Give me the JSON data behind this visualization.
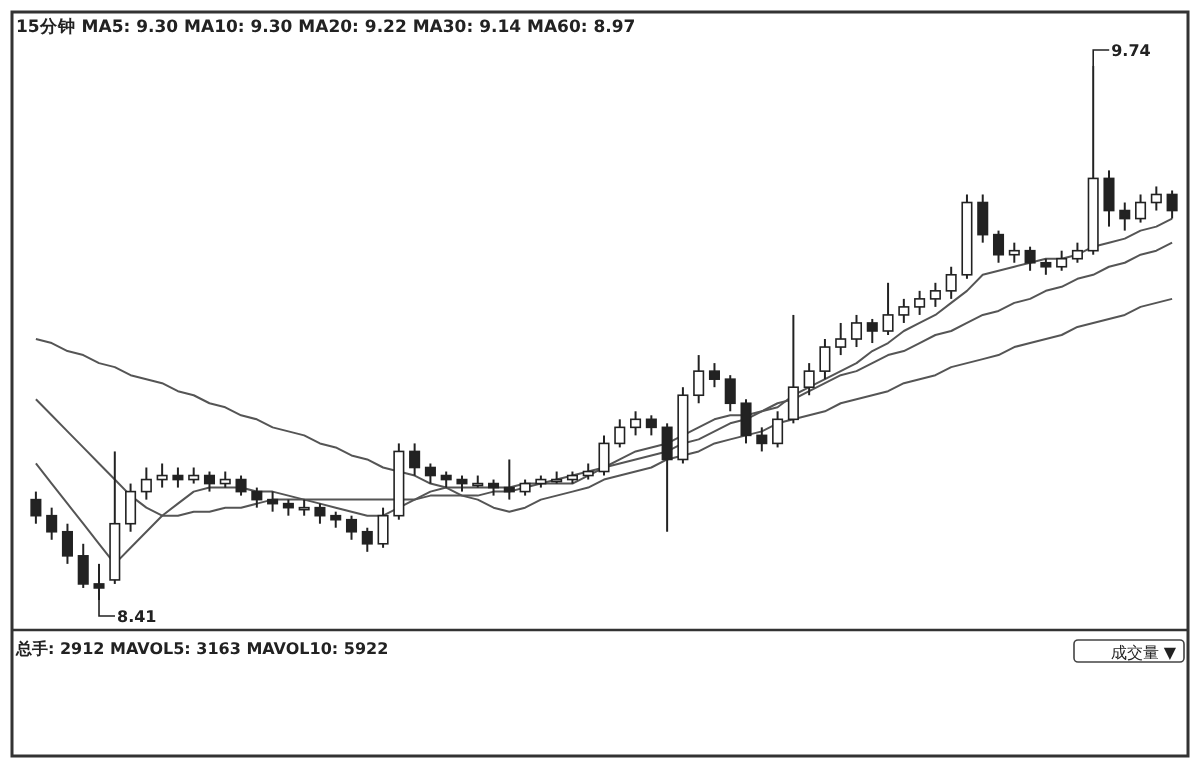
{
  "chart_data": {
    "type": "candlestick",
    "title": "15分钟 MA5: 9.30 MA10: 9.30 MA20: 9.22 MA30: 9.14 MA60: 8.97",
    "categories": [
      null,
      null,
      null,
      null,
      null,
      null,
      null,
      null,
      null,
      null,
      null,
      null,
      null,
      null,
      null,
      null,
      null,
      null,
      null,
      null,
      null,
      null,
      null,
      null,
      null,
      null,
      null,
      null,
      null,
      null,
      null,
      null,
      null,
      null,
      null,
      null,
      null,
      null,
      null,
      null,
      null,
      null,
      null,
      null,
      null,
      null,
      null,
      null,
      null,
      null,
      null,
      null,
      null,
      null,
      null,
      null,
      null,
      null,
      null,
      null,
      null,
      null,
      null,
      null,
      null,
      null,
      null,
      null,
      null,
      null,
      null,
      null,
      null
    ],
    "ohlc": [
      [
        8.66,
        8.68,
        8.6,
        8.62
      ],
      [
        8.62,
        8.64,
        8.56,
        8.58
      ],
      [
        8.58,
        8.6,
        8.5,
        8.52
      ],
      [
        8.52,
        8.55,
        8.44,
        8.45
      ],
      [
        8.45,
        8.5,
        8.41,
        8.44
      ],
      [
        8.46,
        8.78,
        8.45,
        8.6
      ],
      [
        8.6,
        8.7,
        8.58,
        8.68
      ],
      [
        8.68,
        8.74,
        8.66,
        8.71
      ],
      [
        8.71,
        8.75,
        8.69,
        8.72
      ],
      [
        8.72,
        8.74,
        8.69,
        8.71
      ],
      [
        8.71,
        8.74,
        8.7,
        8.72
      ],
      [
        8.72,
        8.73,
        8.68,
        8.7
      ],
      [
        8.7,
        8.73,
        8.69,
        8.71
      ],
      [
        8.71,
        8.72,
        8.67,
        8.68
      ],
      [
        8.68,
        8.69,
        8.64,
        8.66
      ],
      [
        8.66,
        8.68,
        8.63,
        8.65
      ],
      [
        8.65,
        8.66,
        8.62,
        8.64
      ],
      [
        8.64,
        8.66,
        8.62,
        8.64
      ],
      [
        8.64,
        8.65,
        8.6,
        8.62
      ],
      [
        8.62,
        8.63,
        8.59,
        8.61
      ],
      [
        8.61,
        8.62,
        8.56,
        8.58
      ],
      [
        8.58,
        8.59,
        8.53,
        8.55
      ],
      [
        8.55,
        8.64,
        8.54,
        8.62
      ],
      [
        8.62,
        8.8,
        8.61,
        8.78
      ],
      [
        8.78,
        8.8,
        8.72,
        8.74
      ],
      [
        8.74,
        8.75,
        8.7,
        8.72
      ],
      [
        8.72,
        8.73,
        8.69,
        8.71
      ],
      [
        8.71,
        8.72,
        8.68,
        8.7
      ],
      [
        8.7,
        8.72,
        8.69,
        8.7
      ],
      [
        8.7,
        8.71,
        8.67,
        8.69
      ],
      [
        8.69,
        8.76,
        8.66,
        8.68
      ],
      [
        8.68,
        8.71,
        8.67,
        8.7
      ],
      [
        8.7,
        8.72,
        8.69,
        8.71
      ],
      [
        8.71,
        8.73,
        8.7,
        8.71
      ],
      [
        8.71,
        8.73,
        8.7,
        8.72
      ],
      [
        8.72,
        8.75,
        8.71,
        8.73
      ],
      [
        8.73,
        8.82,
        8.72,
        8.8
      ],
      [
        8.8,
        8.86,
        8.79,
        8.84
      ],
      [
        8.84,
        8.88,
        8.82,
        8.86
      ],
      [
        8.86,
        8.87,
        8.82,
        8.84
      ],
      [
        8.84,
        8.85,
        8.58,
        8.76
      ],
      [
        8.76,
        8.94,
        8.75,
        8.92
      ],
      [
        8.92,
        9.02,
        8.9,
        8.98
      ],
      [
        8.98,
        9.0,
        8.94,
        8.96
      ],
      [
        8.96,
        8.97,
        8.88,
        8.9
      ],
      [
        8.9,
        8.91,
        8.8,
        8.82
      ],
      [
        8.82,
        8.84,
        8.78,
        8.8
      ],
      [
        8.8,
        8.88,
        8.79,
        8.86
      ],
      [
        8.86,
        9.12,
        8.85,
        8.94
      ],
      [
        8.94,
        9.0,
        8.92,
        8.98
      ],
      [
        8.98,
        9.06,
        8.96,
        9.04
      ],
      [
        9.04,
        9.1,
        9.02,
        9.06
      ],
      [
        9.06,
        9.12,
        9.04,
        9.1
      ],
      [
        9.1,
        9.11,
        9.05,
        9.08
      ],
      [
        9.08,
        9.2,
        9.07,
        9.12
      ],
      [
        9.12,
        9.16,
        9.1,
        9.14
      ],
      [
        9.14,
        9.18,
        9.12,
        9.16
      ],
      [
        9.16,
        9.2,
        9.14,
        9.18
      ],
      [
        9.18,
        9.24,
        9.16,
        9.22
      ],
      [
        9.22,
        9.42,
        9.21,
        9.4
      ],
      [
        9.4,
        9.42,
        9.3,
        9.32
      ],
      [
        9.32,
        9.33,
        9.25,
        9.27
      ],
      [
        9.27,
        9.3,
        9.25,
        9.28
      ],
      [
        9.28,
        9.29,
        9.23,
        9.25
      ],
      [
        9.25,
        9.26,
        9.22,
        9.24
      ],
      [
        9.24,
        9.28,
        9.23,
        9.26
      ],
      [
        9.26,
        9.3,
        9.25,
        9.28
      ],
      [
        9.28,
        9.74,
        9.27,
        9.46
      ],
      [
        9.46,
        9.48,
        9.34,
        9.38
      ],
      [
        9.38,
        9.4,
        9.33,
        9.36
      ],
      [
        9.36,
        9.42,
        9.35,
        9.4
      ],
      [
        9.4,
        9.44,
        9.38,
        9.42
      ],
      [
        9.42,
        9.43,
        9.36,
        9.38
      ]
    ],
    "series": [
      {
        "type": "line",
        "color": "#555555",
        "values": [
          9.06,
          9.05,
          9.03,
          9.02,
          9.0,
          8.99,
          8.97,
          8.96,
          8.95,
          8.93,
          8.92,
          8.9,
          8.89,
          8.87,
          8.86,
          8.84,
          8.83,
          8.82,
          8.8,
          8.79,
          8.77,
          8.76,
          8.74,
          8.73,
          8.72,
          8.7,
          8.69,
          8.67,
          8.66,
          8.64,
          8.63,
          8.64,
          8.66,
          8.67,
          8.68,
          8.69,
          8.71,
          8.72,
          8.73,
          8.74,
          8.76,
          8.77,
          8.78,
          8.8,
          8.81,
          8.82,
          8.83,
          8.85,
          8.86,
          8.87,
          8.88,
          8.9,
          8.91,
          8.92,
          8.93,
          8.95,
          8.96,
          8.97,
          8.99,
          9.0,
          9.01,
          9.02,
          9.04,
          9.05,
          9.06,
          9.07,
          9.09,
          9.1,
          9.11,
          9.12,
          9.14,
          9.15,
          9.16
        ]
      },
      {
        "type": "line",
        "color": "#555555",
        "values": [
          8.91,
          8.87,
          8.83,
          8.79,
          8.75,
          8.71,
          8.67,
          8.64,
          8.62,
          8.62,
          8.63,
          8.63,
          8.64,
          8.64,
          8.65,
          8.66,
          8.66,
          8.66,
          8.66,
          8.66,
          8.66,
          8.66,
          8.66,
          8.66,
          8.66,
          8.67,
          8.67,
          8.67,
          8.67,
          8.68,
          8.68,
          8.69,
          8.7,
          8.71,
          8.72,
          8.73,
          8.74,
          8.75,
          8.76,
          8.77,
          8.78,
          8.8,
          8.81,
          8.83,
          8.85,
          8.86,
          8.88,
          8.9,
          8.91,
          8.93,
          8.95,
          8.97,
          8.98,
          9.0,
          9.02,
          9.03,
          9.05,
          9.07,
          9.08,
          9.1,
          9.12,
          9.13,
          9.15,
          9.16,
          9.18,
          9.19,
          9.21,
          9.22,
          9.24,
          9.25,
          9.27,
          9.28,
          9.3
        ]
      },
      {
        "type": "line",
        "color": "#555555",
        "values": [
          8.75,
          8.7,
          8.65,
          8.6,
          8.55,
          8.5,
          8.54,
          8.58,
          8.62,
          8.65,
          8.68,
          8.69,
          8.69,
          8.69,
          8.68,
          8.68,
          8.67,
          8.66,
          8.65,
          8.64,
          8.63,
          8.62,
          8.62,
          8.64,
          8.66,
          8.68,
          8.69,
          8.69,
          8.69,
          8.69,
          8.69,
          8.7,
          8.7,
          8.7,
          8.7,
          8.72,
          8.74,
          8.76,
          8.78,
          8.79,
          8.8,
          8.82,
          8.84,
          8.86,
          8.87,
          8.87,
          8.88,
          8.89,
          8.92,
          8.94,
          8.96,
          8.98,
          9.0,
          9.03,
          9.05,
          9.08,
          9.1,
          9.12,
          9.15,
          9.18,
          9.22,
          9.23,
          9.24,
          9.25,
          9.26,
          9.26,
          9.27,
          9.29,
          9.3,
          9.31,
          9.33,
          9.34,
          9.36
        ]
      }
    ],
    "annotations": [
      "9.74",
      "8.41",
      "总手: 2912 MAVOL5: 3163 MAVOL10: 5922",
      "成交量 ▼"
    ]
  }
}
